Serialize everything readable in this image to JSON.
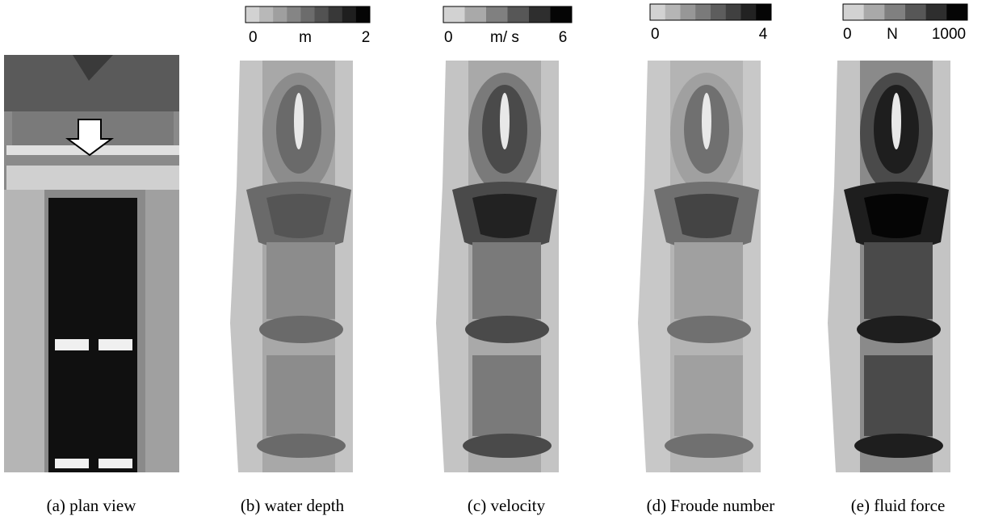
{
  "panels": [
    {
      "caption": "(a) plan view"
    },
    {
      "caption": "(b) water depth",
      "colorbar": {
        "min": "0",
        "unit": "m",
        "max": "2"
      }
    },
    {
      "caption": "(c) velocity",
      "colorbar": {
        "min": "0",
        "unit": "m/ s",
        "max": "6"
      }
    },
    {
      "caption": "(d) Froude number",
      "colorbar": {
        "min": "0",
        "max": "4"
      }
    },
    {
      "caption": "(e) fluid force",
      "colorbar": {
        "min": "0",
        "unit": "N",
        "max": "1000"
      }
    }
  ]
}
